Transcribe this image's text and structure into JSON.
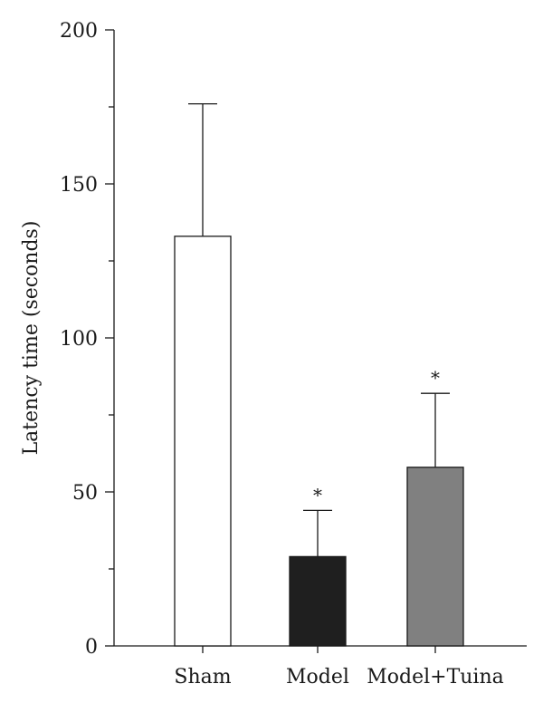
{
  "chart_data": {
    "type": "bar",
    "title": "",
    "xlabel": "",
    "ylabel": "Latency time (seconds)",
    "ylim": [
      0,
      200
    ],
    "yticks": [
      0,
      50,
      100,
      150,
      200
    ],
    "grid": false,
    "categories": [
      "Sham",
      "Model",
      "Model+Tuina"
    ],
    "values": [
      133,
      29,
      58
    ],
    "error_upper": [
      43,
      15,
      24
    ],
    "bar_colors": [
      "#ffffff",
      "#1f1f1f",
      "#808080"
    ],
    "annotations": [
      "",
      "*",
      "*"
    ]
  }
}
